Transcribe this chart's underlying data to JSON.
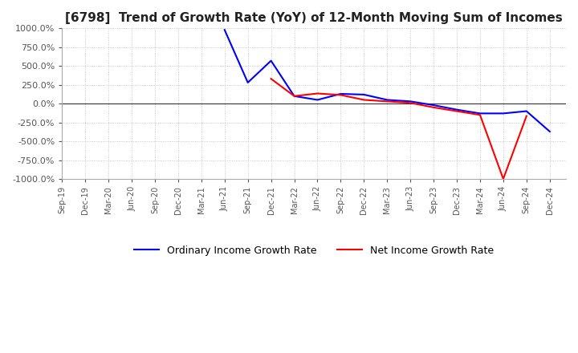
{
  "title": "[6798]  Trend of Growth Rate (YoY) of 12-Month Moving Sum of Incomes",
  "title_fontsize": 11,
  "ylim": [
    -1000,
    1000
  ],
  "yticks": [
    -1000,
    -750,
    -500,
    -250,
    0,
    250,
    500,
    750,
    1000
  ],
  "ytick_labels": [
    "-1000.0%",
    "-750.0%",
    "-500.0%",
    "-250.0%",
    "0.0%",
    "250.0%",
    "500.0%",
    "750.0%",
    "1000.0%"
  ],
  "grid_color": "#bbbbbb",
  "background_color": "#ffffff",
  "ordinary_color": "#0000ff",
  "net_color": "#ff0000",
  "legend_labels": [
    "Ordinary Income Growth Rate",
    "Net Income Growth Rate"
  ],
  "x_labels": [
    "Sep-19",
    "Dec-19",
    "Mar-20",
    "Jun-20",
    "Sep-20",
    "Dec-20",
    "Mar-21",
    "Jun-21",
    "Sep-21",
    "Dec-21",
    "Mar-22",
    "Jun-22",
    "Sep-22",
    "Dec-22",
    "Mar-23",
    "Jun-23",
    "Sep-23",
    "Dec-23",
    "Mar-24",
    "Jun-24",
    "Sep-24",
    "Dec-24"
  ],
  "ordinary_income_growth": [
    null,
    null,
    null,
    null,
    null,
    null,
    null,
    980,
    280,
    570,
    100,
    50,
    130,
    120,
    50,
    30,
    -20,
    -80,
    -130,
    -130,
    -100,
    -370
  ],
  "net_income_growth": [
    null,
    null,
    null,
    null,
    null,
    null,
    null,
    null,
    null,
    330,
    100,
    135,
    115,
    50,
    30,
    10,
    -50,
    -100,
    -150,
    -1000,
    -165,
    null
  ]
}
